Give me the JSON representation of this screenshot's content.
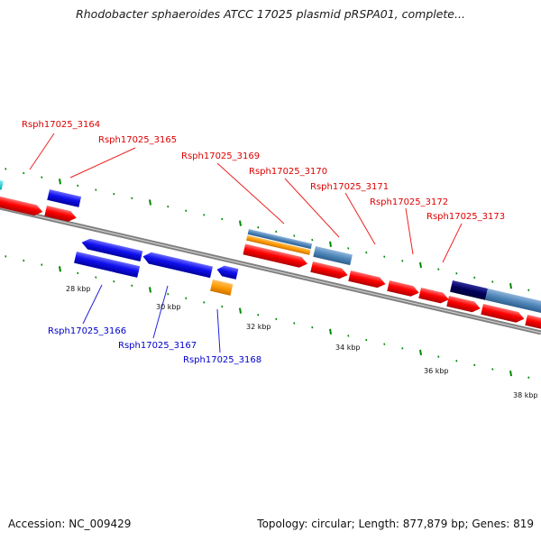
{
  "title": "Rhodobacter sphaeroides ATCC 17025 plasmid pRSPA01, complete...",
  "footer": {
    "accession_label": "Accession:",
    "accession": "NC_009429",
    "summary": "Topology: circular; Length: 877,879 bp; Genes: 819"
  },
  "colors": {
    "forward_cds": "#ff0000",
    "reverse_cds": "#1010ee",
    "rna_orange": "#ff9a00",
    "misc_feature": "#4f86b8",
    "dark_feature": "#00005a",
    "cyan_feature": "#00c8d2",
    "tick": "#008800",
    "forward_label": "#dd0000",
    "reverse_label": "#0000cc",
    "backbone": "#808080"
  },
  "scale_labels": [
    {
      "text": "28 kbp"
    },
    {
      "text": "30 kbp"
    },
    {
      "text": "32 kbp"
    },
    {
      "text": "34 kbp"
    },
    {
      "text": "36 kbp"
    },
    {
      "text": "38 kbp"
    }
  ],
  "gene_labels": [
    {
      "text": "Rsph17025_3164",
      "strand": "forward"
    },
    {
      "text": "Rsph17025_3165",
      "strand": "forward"
    },
    {
      "text": "Rsph17025_3169",
      "strand": "forward"
    },
    {
      "text": "Rsph17025_3170",
      "strand": "forward"
    },
    {
      "text": "Rsph17025_3171",
      "strand": "forward"
    },
    {
      "text": "Rsph17025_3172",
      "strand": "forward"
    },
    {
      "text": "Rsph17025_3173",
      "strand": "forward"
    },
    {
      "text": "Rsph17025_3166",
      "strand": "reverse"
    },
    {
      "text": "Rsph17025_3167",
      "strand": "reverse"
    },
    {
      "text": "Rsph17025_3168",
      "strand": "reverse"
    }
  ]
}
